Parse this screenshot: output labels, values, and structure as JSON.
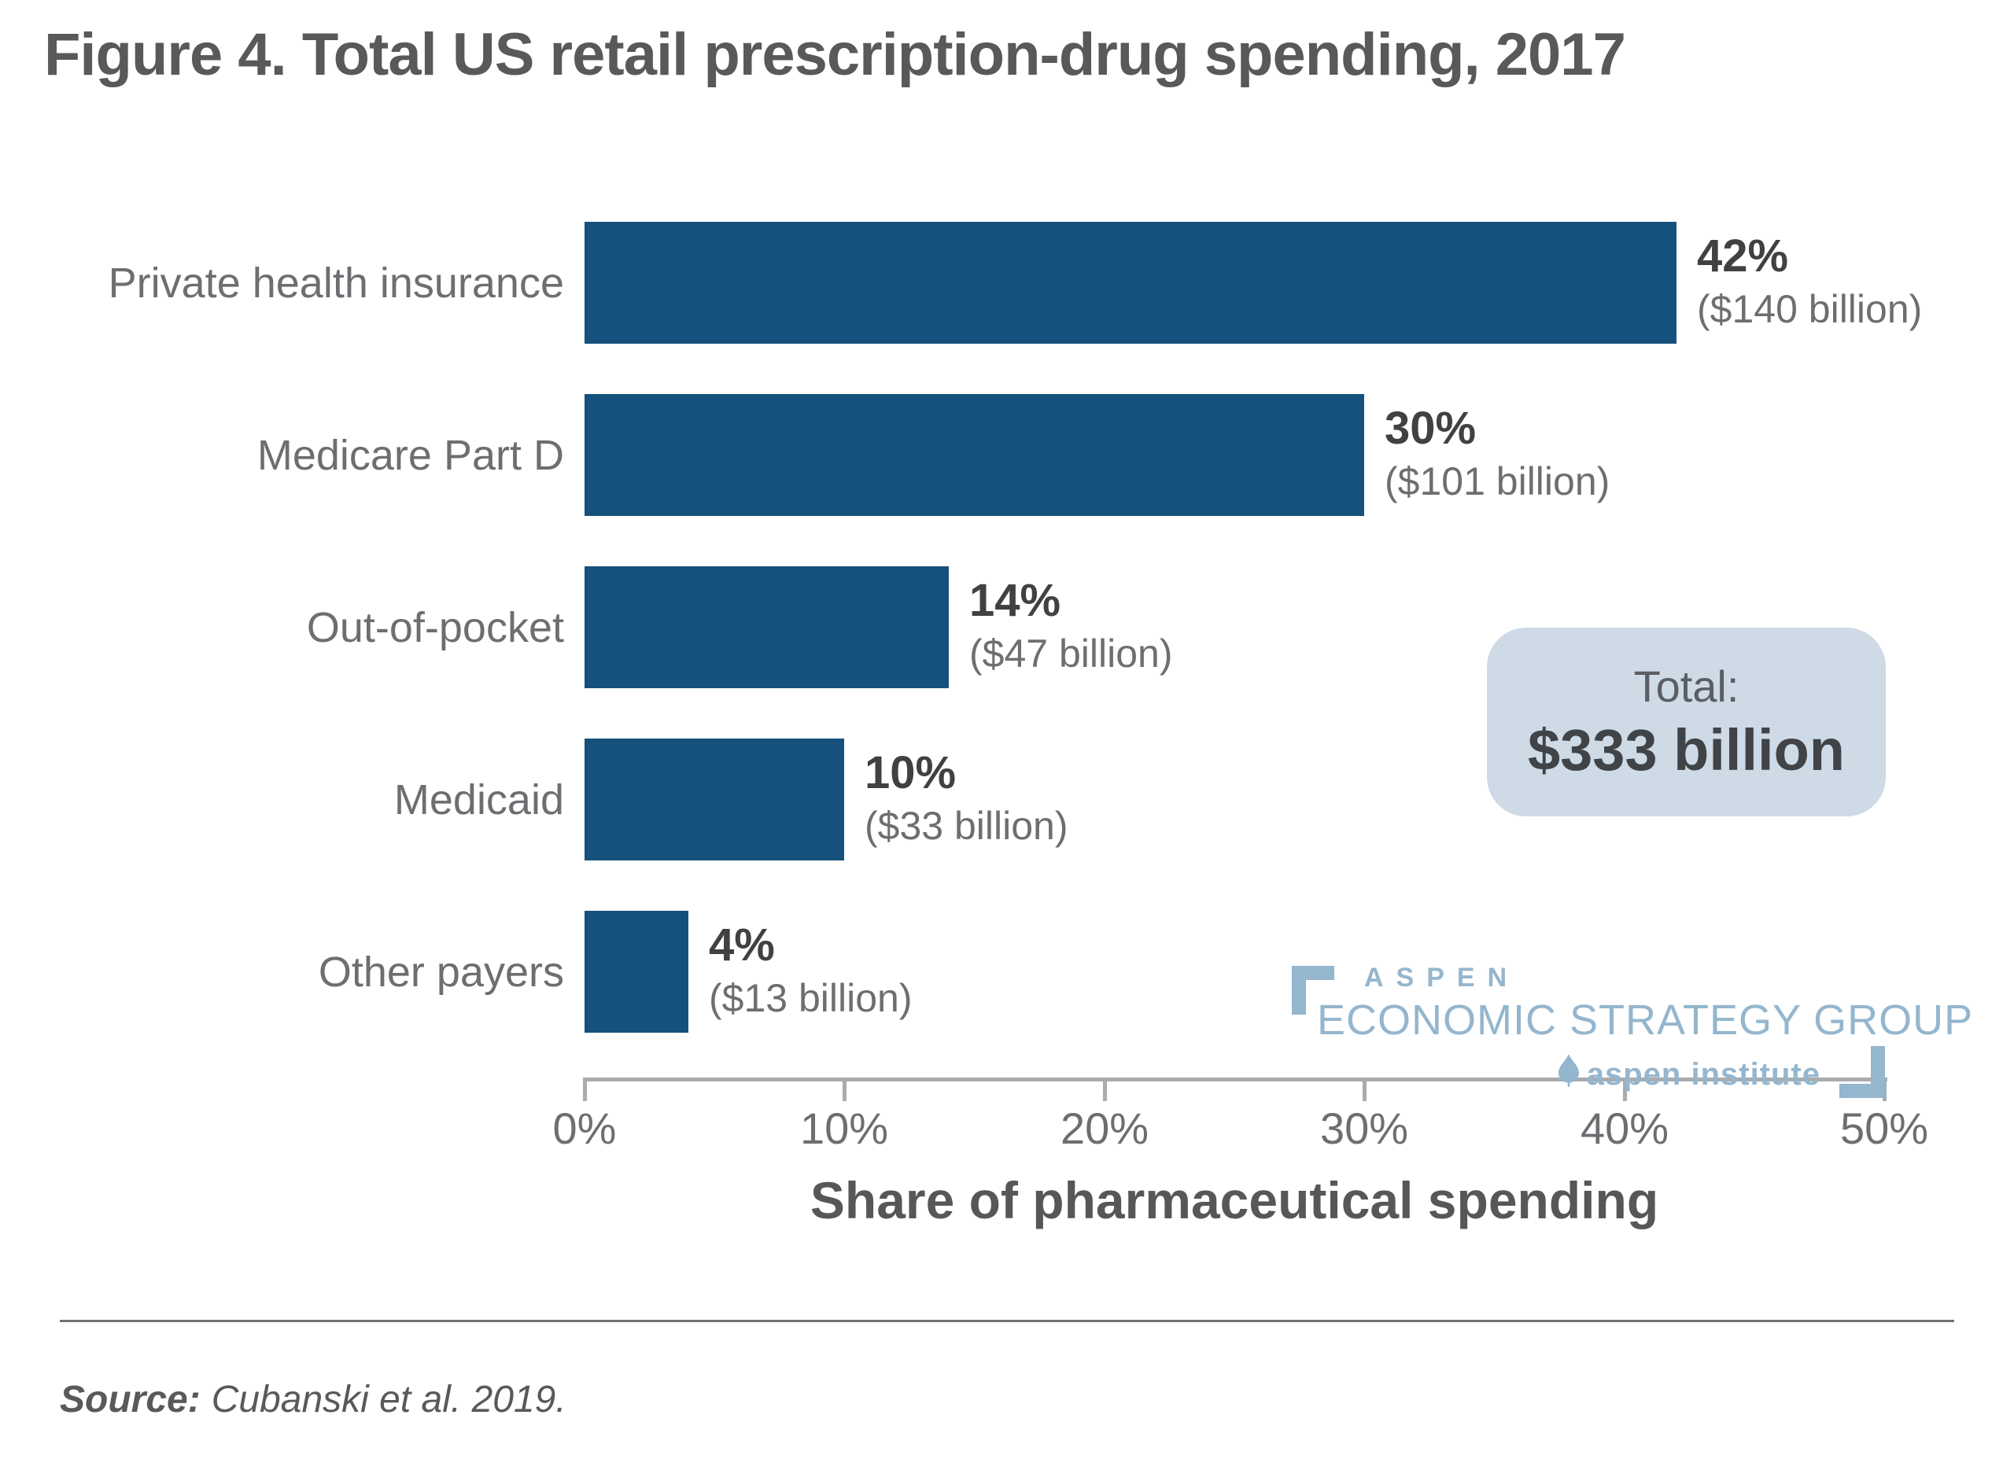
{
  "title": "Figure 4. Total US retail prescription-drug spending, 2017",
  "chart_data": {
    "type": "bar",
    "orientation": "horizontal",
    "title": "Figure 4. Total US retail prescription-drug spending, 2017",
    "categories": [
      "Private health insurance",
      "Medicare Part D",
      "Out-of-pocket",
      "Medicaid",
      "Other payers"
    ],
    "values": [
      42,
      30,
      14,
      10,
      4
    ],
    "value_labels": [
      "42%",
      "30%",
      "14%",
      "10%",
      "4%"
    ],
    "amount_labels": [
      "($140 billion)",
      "($101 billion)",
      "($47 billion)",
      "($33 billion)",
      "($13 billion)"
    ],
    "amounts_billion_usd": [
      140,
      101,
      47,
      33,
      13
    ],
    "xlabel": "Share of pharmaceutical spending",
    "ylabel": "",
    "xlim": [
      0,
      50
    ],
    "x_tick_labels": [
      "0%",
      "10%",
      "20%",
      "30%",
      "40%",
      "50%"
    ],
    "x_tick_values": [
      0,
      10,
      20,
      30,
      40,
      50
    ],
    "grid": false,
    "legend": false,
    "bar_color": "#16517d"
  },
  "total_box": {
    "label": "Total:",
    "value": "$333 billion",
    "background_color": "#cedae5"
  },
  "logo": {
    "line1": "ASPEN",
    "line2": "ECONOMIC STRATEGY GROUP",
    "line3": "aspen institute",
    "color": "#94b6ce"
  },
  "source": {
    "prefix": "Source:",
    "text": "Cubanski et al. 2019."
  },
  "colors": {
    "bar": "#16517d",
    "title_text": "#58595b",
    "category_text": "#6d6e71",
    "pct_text": "#414042",
    "amount_text": "#6d6e71",
    "axis": "#a9abae",
    "tick_text": "#6d6e71",
    "axis_title_text": "#565759",
    "divider": "#707275"
  }
}
